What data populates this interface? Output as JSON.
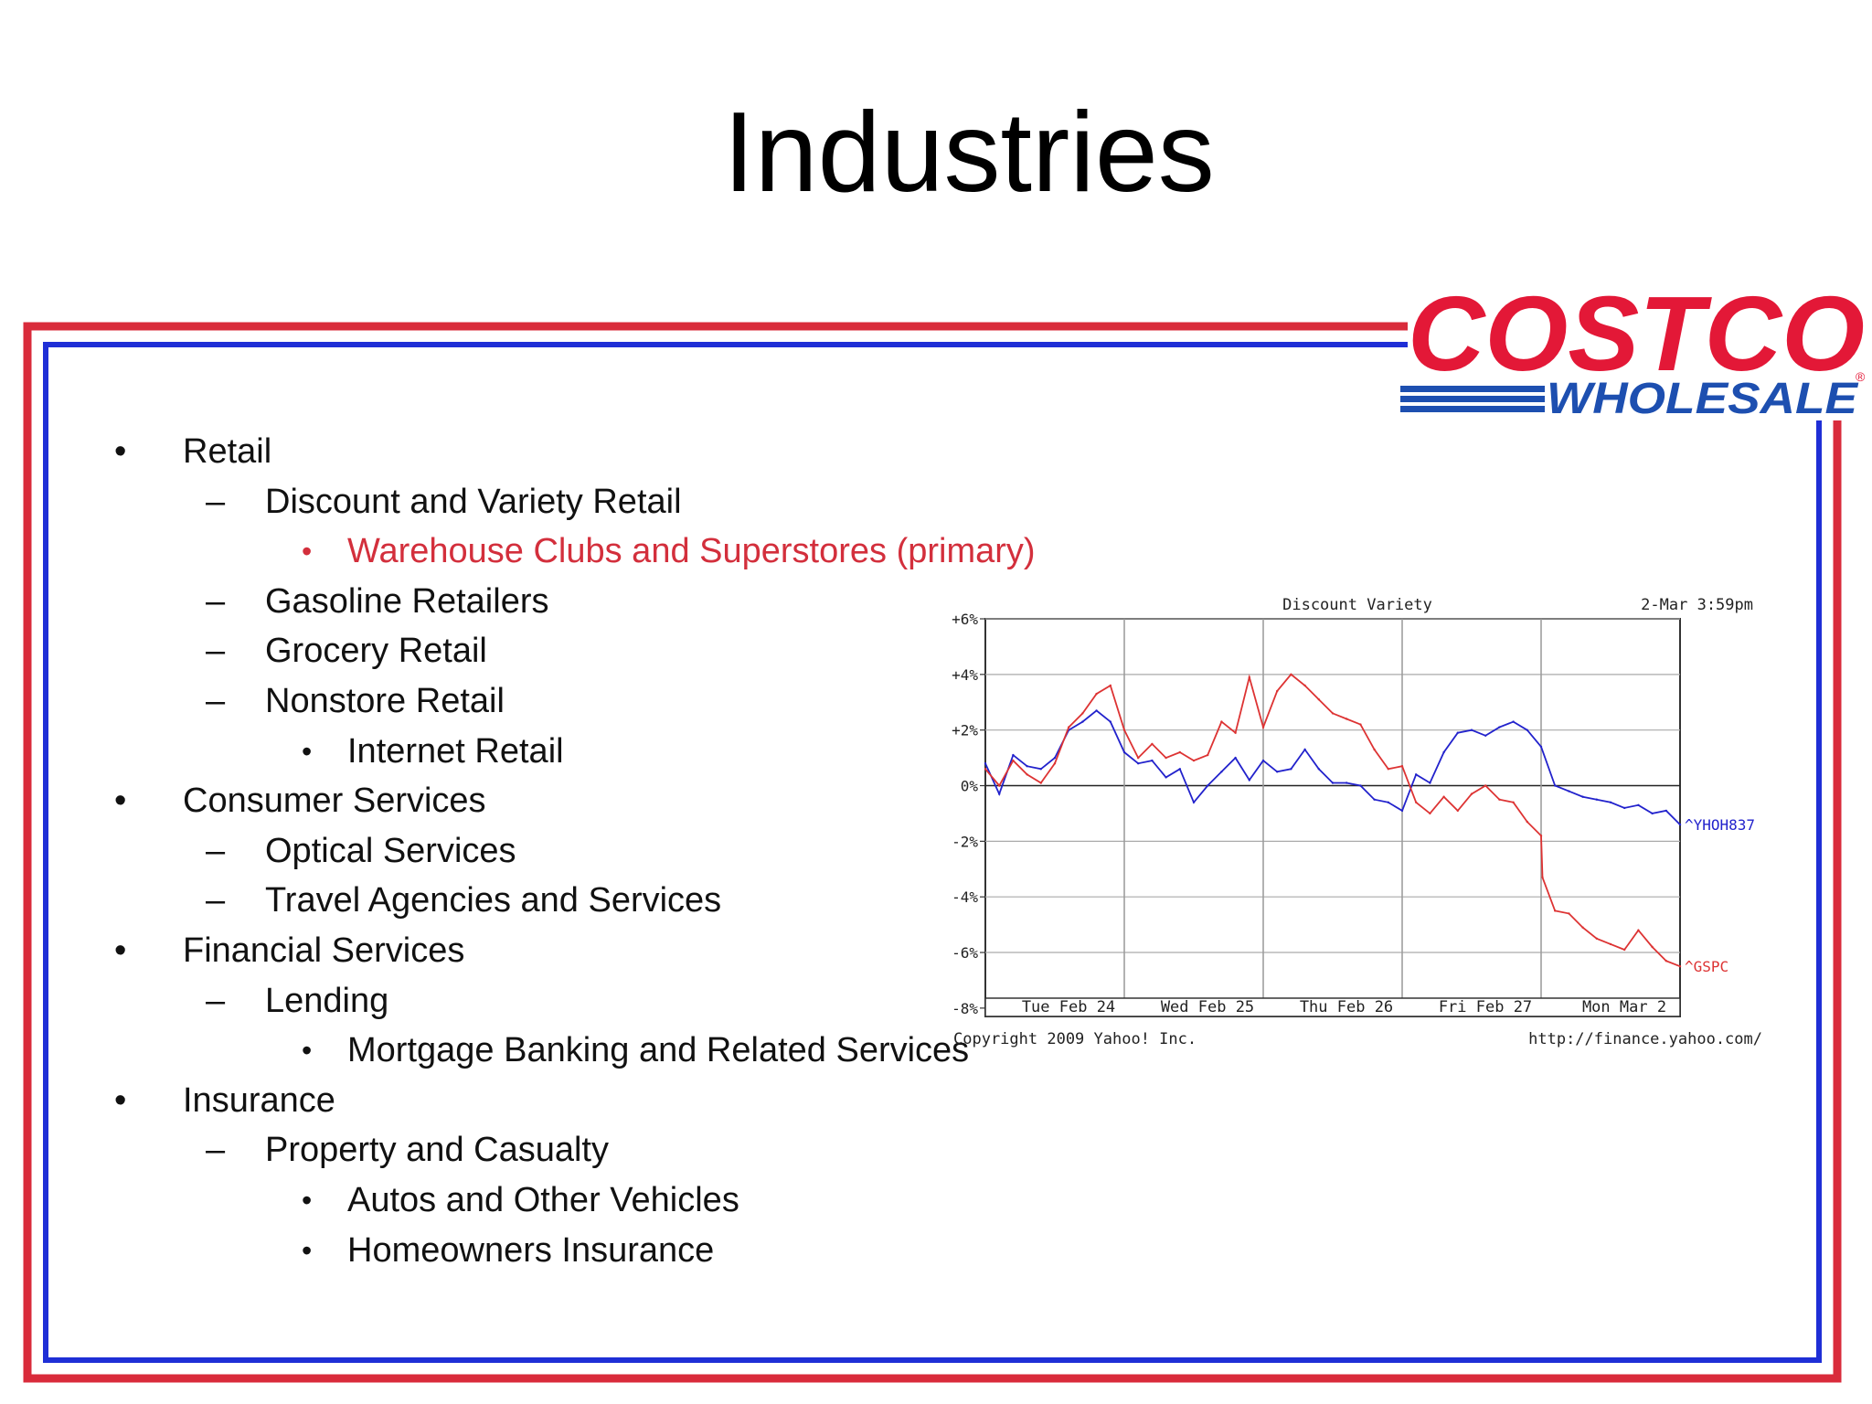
{
  "slide": {
    "title": "Industries"
  },
  "logo": {
    "word1": "COSTCO",
    "word2": "WHOLESALE",
    "reg": "®"
  },
  "colors": {
    "frame_red": "#d92b3b",
    "frame_blue": "#1f2fd6",
    "highlight": "#d32f3c",
    "series_blue": "#2222cc",
    "series_red": "#dd3333"
  },
  "bullets": [
    {
      "level": 1,
      "marker": "•",
      "text": "Retail"
    },
    {
      "level": 2,
      "marker": "–",
      "text": "Discount and Variety Retail"
    },
    {
      "level": 3,
      "marker": "•",
      "text": "Warehouse Clubs and Superstores (primary)",
      "highlight": true
    },
    {
      "level": 2,
      "marker": "–",
      "text": "Gasoline Retailers"
    },
    {
      "level": 2,
      "marker": "–",
      "text": "Grocery Retail"
    },
    {
      "level": 2,
      "marker": "–",
      "text": "Nonstore Retail"
    },
    {
      "level": 3,
      "marker": "•",
      "text": "Internet Retail"
    },
    {
      "level": 1,
      "marker": "•",
      "text": "Consumer Services"
    },
    {
      "level": 2,
      "marker": "–",
      "text": "Optical Services"
    },
    {
      "level": 2,
      "marker": "–",
      "text": "Travel Agencies and Services"
    },
    {
      "level": 1,
      "marker": "•",
      "text": "Financial Services"
    },
    {
      "level": 2,
      "marker": "–",
      "text": "Lending"
    },
    {
      "level": 3,
      "marker": "•",
      "text": "Mortgage Banking and Related Services"
    },
    {
      "level": 1,
      "marker": "•",
      "text": "Insurance"
    },
    {
      "level": 2,
      "marker": "–",
      "text": "Property and Casualty"
    },
    {
      "level": 3,
      "marker": "•",
      "text": "Autos and Other Vehicles"
    },
    {
      "level": 3,
      "marker": "•",
      "text": "Homeowners Insurance"
    }
  ],
  "chart_data": {
    "type": "line",
    "title": "Discount Variety",
    "timestamp": "2-Mar 3:59pm",
    "copyright": "Copyright 2009 Yahoo! Inc.",
    "url": "http://finance.yahoo.com/",
    "y_ticks": [
      "+6%",
      "+4%",
      "+2%",
      "0%",
      "-2%",
      "-4%",
      "-6%",
      "-8%"
    ],
    "y_values": [
      6,
      4,
      2,
      0,
      -2,
      -4,
      -6,
      -8
    ],
    "ylim": [
      -8.3,
      6
    ],
    "xlim": [
      0,
      5
    ],
    "x_ticks": [
      "Tue Feb 24",
      "Wed Feb 25",
      "Thu Feb 26",
      "Fri Feb 27",
      "Mon Mar  2"
    ],
    "grid": true,
    "series": [
      {
        "name": "^YHOH837",
        "color": "#2222cc",
        "x": [
          0,
          0.1,
          0.2,
          0.3,
          0.4,
          0.5,
          0.6,
          0.7,
          0.8,
          0.9,
          1.0,
          1.1,
          1.2,
          1.3,
          1.4,
          1.5,
          1.6,
          1.7,
          1.8,
          1.9,
          2.0,
          2.1,
          2.2,
          2.3,
          2.4,
          2.5,
          2.6,
          2.7,
          2.8,
          2.9,
          3.0,
          3.1,
          3.2,
          3.3,
          3.4,
          3.5,
          3.6,
          3.7,
          3.8,
          3.9,
          4.0,
          4.1,
          4.2,
          4.3,
          4.4,
          4.5,
          4.6,
          4.7,
          4.8,
          4.9,
          5.0
        ],
        "values": [
          0.8,
          -0.3,
          1.1,
          0.7,
          0.6,
          1.0,
          2.0,
          2.3,
          2.7,
          2.3,
          1.2,
          0.8,
          0.9,
          0.3,
          0.6,
          -0.6,
          0.0,
          0.5,
          1.0,
          0.2,
          0.9,
          0.5,
          0.6,
          1.3,
          0.6,
          0.1,
          0.1,
          0.0,
          -0.5,
          -0.6,
          -0.9,
          0.4,
          0.1,
          1.2,
          1.9,
          2.0,
          1.8,
          2.1,
          2.3,
          2.0,
          1.4,
          0.0,
          -0.2,
          -0.4,
          -0.5,
          -0.6,
          -0.8,
          -0.7,
          -1.0,
          -0.9,
          -1.4
        ]
      },
      {
        "name": "^GSPC",
        "color": "#dd3333",
        "x": [
          0,
          0.1,
          0.2,
          0.3,
          0.4,
          0.5,
          0.6,
          0.7,
          0.8,
          0.9,
          1.0,
          1.1,
          1.2,
          1.3,
          1.4,
          1.5,
          1.6,
          1.7,
          1.8,
          1.9,
          2.0,
          2.1,
          2.2,
          2.3,
          2.4,
          2.5,
          2.6,
          2.7,
          2.8,
          2.9,
          3.0,
          3.1,
          3.2,
          3.3,
          3.4,
          3.5,
          3.6,
          3.7,
          3.8,
          3.9,
          4.0,
          4.01,
          4.1,
          4.2,
          4.3,
          4.4,
          4.5,
          4.6,
          4.7,
          4.8,
          4.9,
          5.0
        ],
        "values": [
          0.6,
          0.0,
          0.9,
          0.4,
          0.1,
          0.8,
          2.1,
          2.6,
          3.3,
          3.6,
          2.0,
          1.0,
          1.5,
          1.0,
          1.2,
          0.9,
          1.1,
          2.3,
          1.9,
          3.9,
          2.1,
          3.4,
          4.0,
          3.6,
          3.1,
          2.6,
          2.4,
          2.2,
          1.3,
          0.6,
          0.7,
          -0.6,
          -1.0,
          -0.4,
          -0.9,
          -0.3,
          0.0,
          -0.5,
          -0.6,
          -1.3,
          -1.8,
          -3.3,
          -4.5,
          -4.6,
          -5.1,
          -5.5,
          -5.7,
          -5.9,
          -5.2,
          -5.8,
          -6.3,
          -6.5
        ]
      }
    ]
  }
}
